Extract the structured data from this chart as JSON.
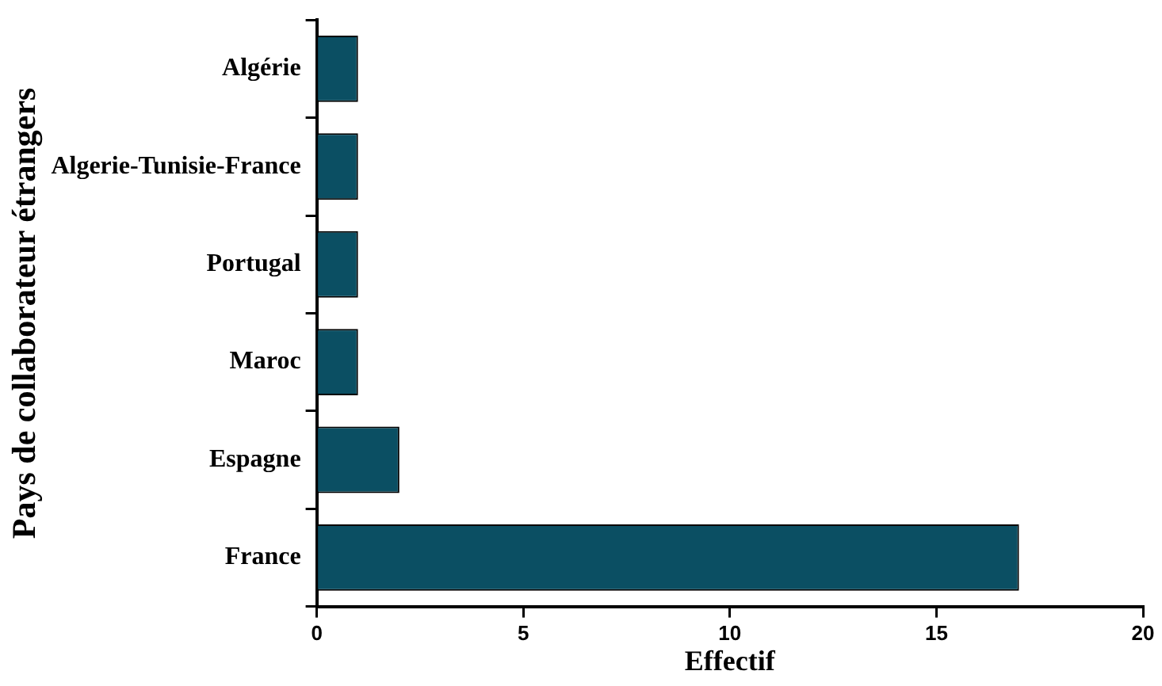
{
  "chart_data": {
    "type": "bar",
    "orientation": "horizontal",
    "xlabel": "Effectif",
    "ylabel": "Pays de collaborateur étrangers",
    "categories": [
      "Algérie",
      "Algerie-Tunisie-France",
      "Portugal",
      "Maroc",
      "Espagne",
      "France"
    ],
    "values": [
      1,
      1,
      1,
      1,
      2,
      17
    ],
    "color": "#0b4f63",
    "xlim": [
      0,
      20
    ],
    "xticks": [
      0,
      5,
      10,
      15,
      20
    ],
    "grid": false,
    "legend": false
  }
}
